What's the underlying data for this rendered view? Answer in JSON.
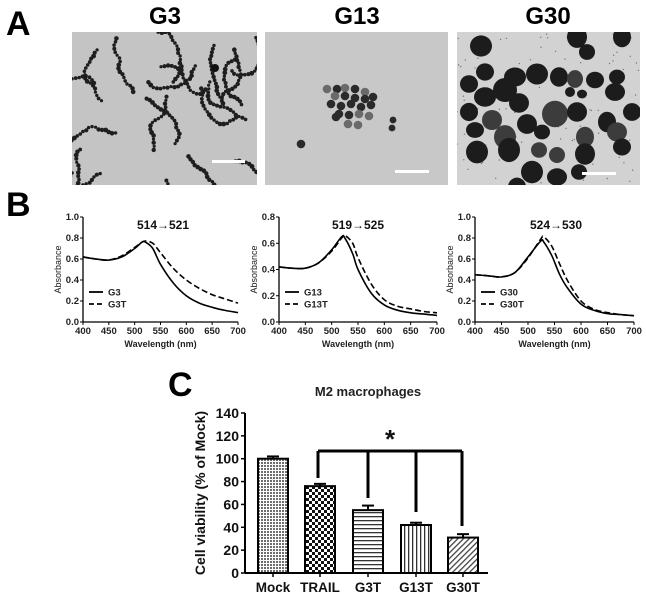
{
  "panels": {
    "A": {
      "letter": "A",
      "images": [
        {
          "label": "G3",
          "description": "TEM image of small (~3 nm) gold nanoparticles forming chain-like networks",
          "scale_bar": true
        },
        {
          "label": "G13",
          "description": "TEM image of a cluster of ~13 nm gold nanoparticles",
          "scale_bar": true
        },
        {
          "label": "G30",
          "description": "TEM image of large (~30 nm) gold nanoparticles",
          "scale_bar": true
        }
      ]
    },
    "B": {
      "letter": "B"
    },
    "C": {
      "letter": "C"
    }
  },
  "chart_data": [
    {
      "type": "line",
      "panel": "B",
      "title": "514→521",
      "xlabel": "Wavelength (nm)",
      "ylabel": "Absorbance",
      "xlim": [
        400,
        700
      ],
      "ylim": [
        0.0,
        1.0
      ],
      "xticks": [
        400,
        450,
        500,
        550,
        600,
        650,
        700
      ],
      "yticks": [
        "0.0",
        "0.2",
        "0.4",
        "0.6",
        "0.8",
        "1.0"
      ],
      "legend": [
        "G3",
        "G3T"
      ],
      "legend_position": "lower left",
      "x": [
        400,
        425,
        450,
        475,
        500,
        514,
        521,
        535,
        550,
        575,
        600,
        625,
        650,
        675,
        700
      ],
      "series": [
        {
          "name": "G3",
          "style": "solid",
          "values": [
            0.62,
            0.6,
            0.59,
            0.62,
            0.7,
            0.76,
            0.76,
            0.7,
            0.55,
            0.37,
            0.25,
            0.18,
            0.14,
            0.11,
            0.09
          ]
        },
        {
          "name": "G3T",
          "style": "dashed",
          "values": [
            0.62,
            0.6,
            0.59,
            0.63,
            0.71,
            0.76,
            0.77,
            0.75,
            0.66,
            0.51,
            0.4,
            0.32,
            0.26,
            0.22,
            0.18
          ]
        }
      ]
    },
    {
      "type": "line",
      "panel": "B",
      "title": "519→525",
      "xlabel": "Wavelength (nm)",
      "ylabel": "Absorbance",
      "xlim": [
        400,
        700
      ],
      "ylim": [
        0.0,
        0.8
      ],
      "xticks": [
        400,
        450,
        500,
        550,
        600,
        650,
        700
      ],
      "yticks": [
        "0.0",
        "0.2",
        "0.4",
        "0.6",
        "0.8"
      ],
      "legend": [
        "G13",
        "G13T"
      ],
      "legend_position": "lower left",
      "x": [
        400,
        425,
        450,
        475,
        500,
        519,
        525,
        540,
        550,
        575,
        600,
        625,
        650,
        675,
        700
      ],
      "series": [
        {
          "name": "G13",
          "style": "solid",
          "values": [
            0.42,
            0.41,
            0.41,
            0.45,
            0.55,
            0.65,
            0.64,
            0.52,
            0.4,
            0.22,
            0.13,
            0.09,
            0.07,
            0.06,
            0.05
          ]
        },
        {
          "name": "G13T",
          "style": "dashed",
          "values": [
            0.42,
            0.41,
            0.41,
            0.45,
            0.54,
            0.64,
            0.66,
            0.6,
            0.49,
            0.29,
            0.17,
            0.12,
            0.1,
            0.08,
            0.07
          ]
        }
      ]
    },
    {
      "type": "line",
      "panel": "B",
      "title": "524→530",
      "xlabel": "Wavelength (nm)",
      "ylabel": "Absorbance",
      "xlim": [
        400,
        700
      ],
      "ylim": [
        0.0,
        1.0
      ],
      "xticks": [
        400,
        450,
        500,
        550,
        600,
        650,
        700
      ],
      "yticks": [
        "0.0",
        "0.2",
        "0.4",
        "0.6",
        "0.8",
        "1.0"
      ],
      "legend": [
        "G30",
        "G30T"
      ],
      "legend_position": "lower left",
      "x": [
        400,
        425,
        450,
        475,
        500,
        524,
        530,
        545,
        560,
        575,
        600,
        625,
        650,
        675,
        700
      ],
      "series": [
        {
          "name": "G30",
          "style": "solid",
          "values": [
            0.45,
            0.44,
            0.43,
            0.47,
            0.62,
            0.77,
            0.76,
            0.63,
            0.45,
            0.32,
            0.17,
            0.11,
            0.08,
            0.07,
            0.06
          ]
        },
        {
          "name": "G30T",
          "style": "dashed",
          "values": [
            0.45,
            0.44,
            0.43,
            0.47,
            0.61,
            0.79,
            0.81,
            0.72,
            0.55,
            0.39,
            0.2,
            0.12,
            0.09,
            0.07,
            0.06
          ]
        }
      ]
    },
    {
      "type": "bar",
      "panel": "C",
      "title": "M2 macrophages",
      "xlabel": "",
      "ylabel": "Cell viability (% of Mock)",
      "ylim": [
        0,
        140
      ],
      "yticks": [
        0,
        20,
        40,
        60,
        80,
        100,
        120,
        140
      ],
      "categories": [
        "Mock",
        "TRAIL",
        "G3T",
        "G13T",
        "G30T"
      ],
      "values": [
        100,
        76,
        55,
        42,
        31
      ],
      "errors": [
        2,
        2,
        4,
        2,
        3
      ],
      "patterns": [
        "dense-dots",
        "checkerboard",
        "horizontal-lines",
        "vertical-lines",
        "diagonal-lines"
      ],
      "annotations": [
        {
          "text": "*",
          "type": "significance-bracket",
          "from": "TRAIL",
          "to": [
            "G3T",
            "G13T",
            "G30T"
          ]
        }
      ]
    }
  ]
}
